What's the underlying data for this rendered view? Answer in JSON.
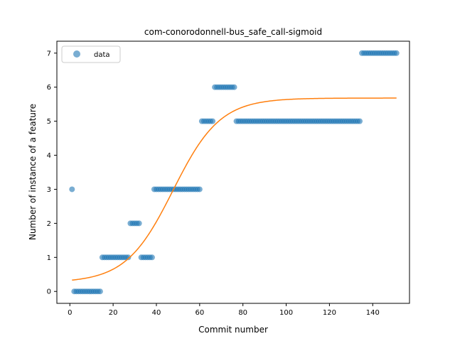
{
  "chart_data": {
    "type": "scatter",
    "title": "com-conorodonnell-bus_safe_call-sigmoid",
    "xlabel": "Commit number",
    "ylabel": "Number of instance of a feature",
    "xlim": [
      -6,
      157
    ],
    "ylim": [
      -0.35,
      7.35
    ],
    "x_ticks": [
      0,
      20,
      40,
      60,
      80,
      100,
      120,
      140
    ],
    "y_ticks": [
      0,
      1,
      2,
      3,
      4,
      5,
      6,
      7
    ],
    "grid": false,
    "legend_position": "top-left",
    "series": [
      {
        "name": "data",
        "kind": "scatter",
        "color": "#1f77b4",
        "alpha": 0.6,
        "segments": [
          {
            "y": 3,
            "x_from": 1,
            "x_to": 1
          },
          {
            "y": 0,
            "x_from": 2,
            "x_to": 14
          },
          {
            "y": 1,
            "x_from": 15,
            "x_to": 27
          },
          {
            "y": 2,
            "x_from": 28,
            "x_to": 32
          },
          {
            "y": 1,
            "x_from": 33,
            "x_to": 38
          },
          {
            "y": 3,
            "x_from": 39,
            "x_to": 60
          },
          {
            "y": 5,
            "x_from": 61,
            "x_to": 66
          },
          {
            "y": 6,
            "x_from": 67,
            "x_to": 76
          },
          {
            "y": 5,
            "x_from": 77,
            "x_to": 134
          },
          {
            "y": 7,
            "x_from": 135,
            "x_to": 151
          }
        ]
      },
      {
        "kind": "line",
        "color": "#ff7f0e",
        "model": "sigmoid",
        "params": {
          "L": 5.42,
          "k": 0.092,
          "x0": 47.7,
          "b": 0.26
        },
        "x_range": [
          1,
          151
        ]
      }
    ]
  }
}
